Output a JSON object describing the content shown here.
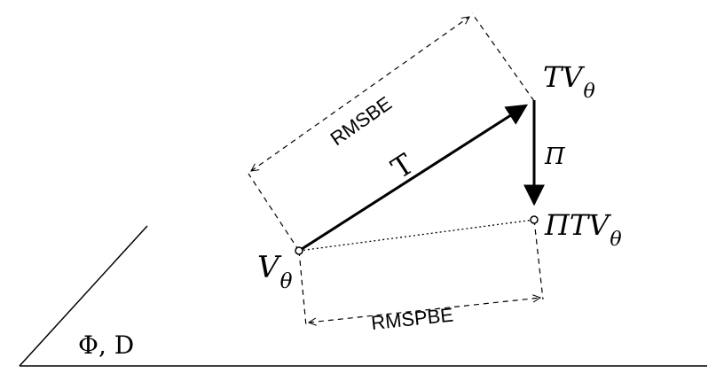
{
  "plane_label": "Φ, D",
  "labels": {
    "v_theta": {
      "base": "V",
      "sub": "θ"
    },
    "tv_theta": {
      "base": "TV",
      "sub": "θ"
    },
    "pitv_theta": {
      "base": "ΠTV",
      "sub": "θ"
    },
    "t_op": "T",
    "pi_op": "Π",
    "rmsbe": "RMSBE",
    "rmspbe": "RMSPBE"
  },
  "colors": {
    "stroke": "#000000",
    "background": "#ffffff"
  }
}
